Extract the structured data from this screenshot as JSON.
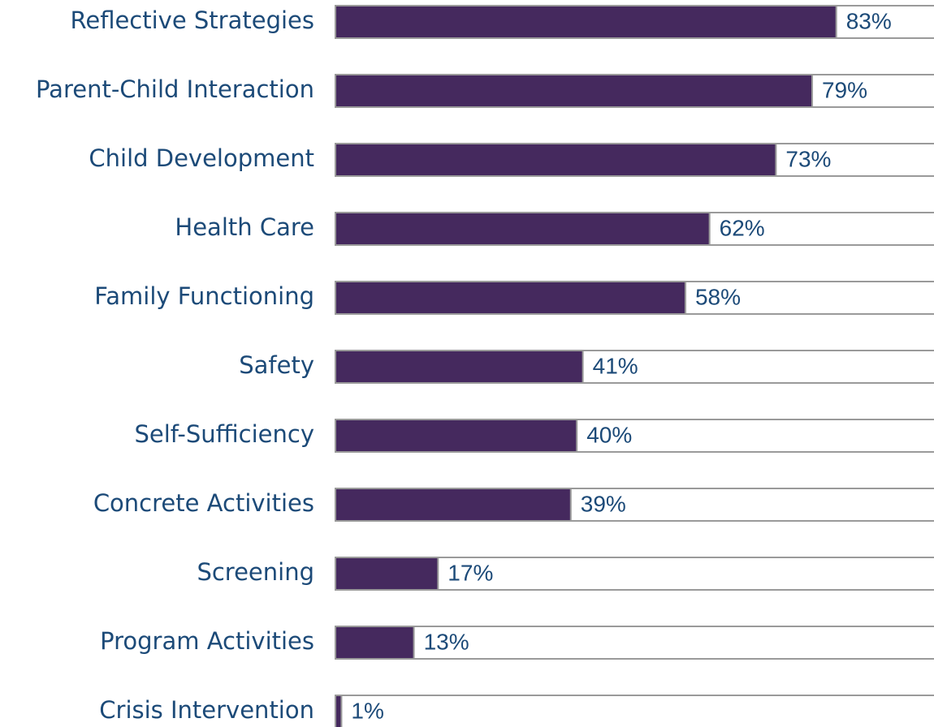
{
  "chart_data": {
    "type": "bar",
    "orientation": "horizontal",
    "categories": [
      "Reflective Strategies",
      "Parent-Child Interaction",
      "Child Development",
      "Health Care",
      "Family Functioning",
      "Safety",
      "Self-Sufficiency",
      "Concrete Activities",
      "Screening",
      "Program Activities",
      "Crisis Intervention"
    ],
    "values": [
      83,
      79,
      73,
      62,
      58,
      41,
      40,
      39,
      17,
      13,
      1
    ],
    "value_labels": [
      "83%",
      "79%",
      "73%",
      "62%",
      "58%",
      "41%",
      "40%",
      "39%",
      "17%",
      "13%",
      "1%"
    ],
    "color": "#45295e",
    "xlim": [
      0,
      100
    ]
  }
}
